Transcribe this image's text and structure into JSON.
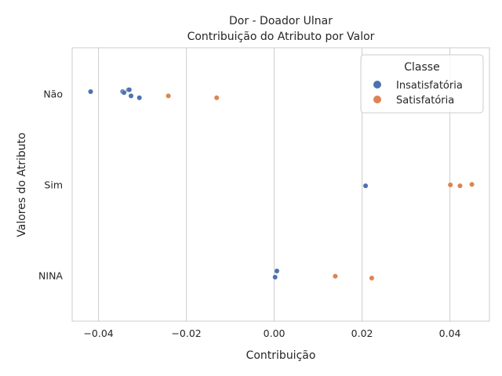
{
  "chart_data": {
    "type": "scatter",
    "title": "Dor - Doador Ulnar",
    "subtitle": "Contribuição do Atributo por Valor",
    "xlabel": "Contribuição",
    "ylabel": "Valores do Atributo",
    "xlim": [
      -0.046,
      0.049
    ],
    "x_ticks": [
      -0.04,
      -0.02,
      0.0,
      0.02,
      0.04
    ],
    "x_tick_labels": [
      "−0.04",
      "−0.02",
      "0.00",
      "0.02",
      "0.04"
    ],
    "categories": [
      "Não",
      "Sim",
      "NINA"
    ],
    "grid": "vertical",
    "legend": {
      "title": "Classe",
      "placement": "top-right"
    },
    "series": [
      {
        "name": "Insatisfatória",
        "color": "#4c72b0",
        "points": [
          {
            "x": -0.0418,
            "category": "Não",
            "jitter": -0.05
          },
          {
            "x": -0.0345,
            "category": "Não",
            "jitter": -0.05
          },
          {
            "x": -0.0342,
            "category": "Não",
            "jitter": -0.03
          },
          {
            "x": -0.0332,
            "category": "Não",
            "jitter": -0.09
          },
          {
            "x": -0.033,
            "category": "Não",
            "jitter": -0.09
          },
          {
            "x": -0.0326,
            "category": "Não",
            "jitter": 0.04
          },
          {
            "x": -0.0307,
            "category": "Não",
            "jitter": 0.08
          },
          {
            "x": 0.0208,
            "category": "Sim",
            "jitter": 0.02
          },
          {
            "x": 0.0006,
            "category": "NINA",
            "jitter": -0.1
          },
          {
            "x": 0.0002,
            "category": "NINA",
            "jitter": 0.03
          }
        ]
      },
      {
        "name": "Satisfatória",
        "color": "#dd8452",
        "points": [
          {
            "x": -0.0241,
            "category": "Não",
            "jitter": 0.04
          },
          {
            "x": -0.0131,
            "category": "Não",
            "jitter": 0.08
          },
          {
            "x": 0.0401,
            "category": "Sim",
            "jitter": 0.0
          },
          {
            "x": 0.0423,
            "category": "Sim",
            "jitter": 0.02
          },
          {
            "x": 0.045,
            "category": "Sim",
            "jitter": -0.01
          },
          {
            "x": 0.0139,
            "category": "NINA",
            "jitter": 0.01
          },
          {
            "x": 0.0222,
            "category": "NINA",
            "jitter": 0.05
          }
        ]
      }
    ]
  }
}
